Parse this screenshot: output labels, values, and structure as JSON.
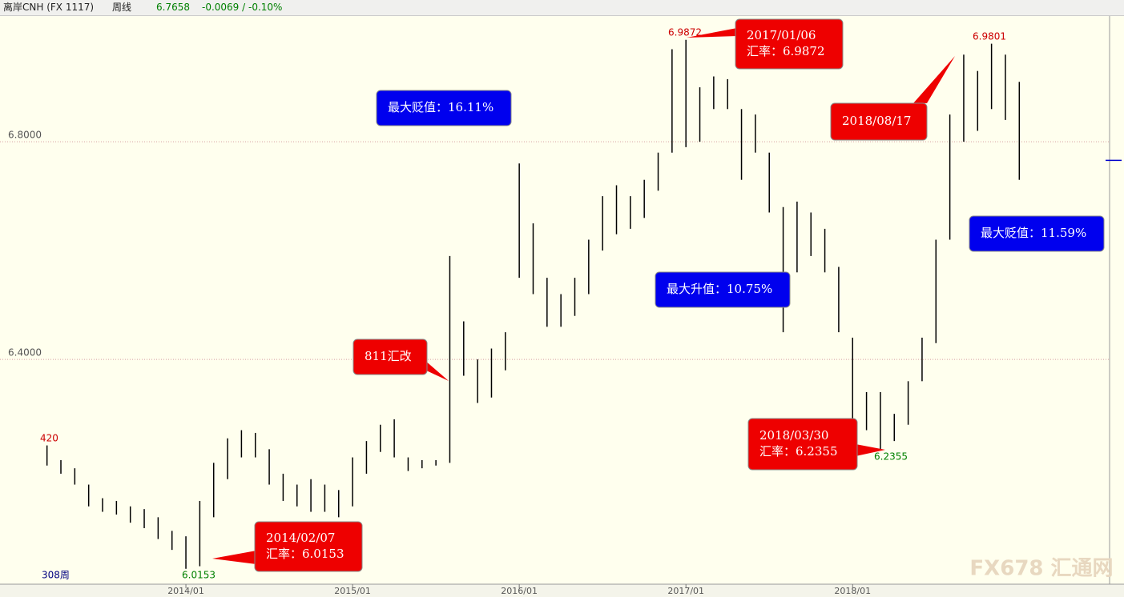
{
  "header": {
    "symbol": "离岸CNH (FX 1117)",
    "period": "周线",
    "last": "6.7658",
    "change": "-0.0069 / -0.10%"
  },
  "chart_data": {
    "type": "ohlc",
    "categories": [
      null,
      null,
      null,
      null,
      null,
      null,
      null,
      null,
      null,
      null,
      "2014/01",
      null,
      null,
      null,
      null,
      null,
      null,
      null,
      null,
      null,
      null,
      null,
      "2015/01",
      null,
      null,
      null,
      null,
      null,
      null,
      null,
      null,
      null,
      null,
      null,
      "2016/01",
      null,
      null,
      null,
      null,
      null,
      null,
      null,
      null,
      null,
      null,
      null,
      "2017/01",
      null,
      null,
      null,
      null,
      null,
      null,
      null,
      null,
      null,
      null,
      null,
      "2018/01",
      null,
      null,
      null,
      null,
      null,
      null,
      null,
      null,
      null,
      null,
      null,
      null,
      null,
      null,
      null,
      null,
      null,
      null
    ],
    "high": [
      6.242,
      6.215,
      6.2,
      6.17,
      6.145,
      6.14,
      6.13,
      6.125,
      6.11,
      6.085,
      6.075,
      6.14,
      6.21,
      6.255,
      6.27,
      6.265,
      6.235,
      6.19,
      6.17,
      6.18,
      6.17,
      6.16,
      6.22,
      6.25,
      6.28,
      6.29,
      6.22,
      6.215,
      6.215,
      6.59,
      6.47,
      6.4,
      6.42,
      6.45,
      6.76,
      6.65,
      6.55,
      6.52,
      6.55,
      6.62,
      6.7,
      6.72,
      6.7,
      6.73,
      6.78,
      6.97,
      6.9872,
      6.9,
      6.92,
      6.915,
      6.86,
      6.85,
      6.78,
      6.68,
      6.69,
      6.67,
      6.64,
      6.57,
      6.44,
      6.34,
      6.34,
      6.3,
      6.36,
      6.44,
      6.62,
      6.85,
      6.96,
      6.93,
      6.9801,
      6.96,
      6.91,
      null,
      null,
      null,
      null,
      null,
      null
    ],
    "low": [
      6.205,
      6.19,
      6.17,
      6.13,
      6.12,
      6.115,
      6.1,
      6.09,
      6.07,
      6.05,
      6.0153,
      6.02,
      6.11,
      6.18,
      6.22,
      6.22,
      6.17,
      6.14,
      6.13,
      6.12,
      6.12,
      6.11,
      6.13,
      6.19,
      6.23,
      6.22,
      6.195,
      6.2,
      6.205,
      6.21,
      6.37,
      6.32,
      6.33,
      6.38,
      6.55,
      6.52,
      6.46,
      6.46,
      6.48,
      6.52,
      6.6,
      6.63,
      6.64,
      6.66,
      6.71,
      6.78,
      6.79,
      6.8,
      6.86,
      6.86,
      6.73,
      6.78,
      6.67,
      6.45,
      6.56,
      6.59,
      6.56,
      6.45,
      6.29,
      6.27,
      6.2355,
      6.25,
      6.28,
      6.36,
      6.43,
      6.62,
      6.8,
      6.82,
      6.86,
      6.84,
      6.73,
      null,
      null,
      null,
      null,
      null,
      null
    ],
    "last": 6.7658,
    "last_color": "#0000cc",
    "bar_color": "#000000",
    "ylim": [
      5.987,
      7.031
    ],
    "yticks": [
      {
        "value": 6.4,
        "label": "6.4000"
      },
      {
        "value": 6.8,
        "label": "6.8000"
      }
    ],
    "grid": true,
    "point_labels": [
      {
        "text": "420",
        "color": "#cc0000"
      },
      {
        "text": "6.0153",
        "color": "#008000"
      },
      {
        "text": "6.9872",
        "color": "#cc0000"
      },
      {
        "text": "6.2355",
        "color": "#008000"
      },
      {
        "text": "6.9801",
        "color": "#cc0000"
      },
      {
        "text": "308周",
        "color": "#000080"
      }
    ],
    "callouts": [
      {
        "text": [
          "2017/01/06",
          "汇率：6.9872"
        ],
        "color": "#ee0000"
      },
      {
        "text": [
          "2018/08/17"
        ],
        "color": "#ee0000"
      },
      {
        "text": [
          "最大贬值：16.11%"
        ],
        "color": "#0000ee"
      },
      {
        "text": [
          "最大贬值：11.59%"
        ],
        "color": "#0000ee"
      },
      {
        "text": [
          "最大升值：10.75%"
        ],
        "color": "#0000ee"
      },
      {
        "text": [
          "811汇改"
        ],
        "color": "#ee0000"
      },
      {
        "text": [
          "2018/03/30",
          "汇率：6.2355"
        ],
        "color": "#ee0000"
      },
      {
        "text": [
          "2014/02/07",
          "汇率：6.0153"
        ],
        "color": "#ee0000"
      }
    ],
    "watermark": "FX678 汇通网"
  }
}
